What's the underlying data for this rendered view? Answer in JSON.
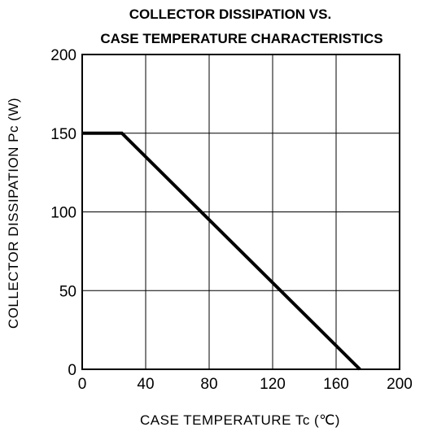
{
  "chart_data": {
    "type": "line",
    "title_lines": [
      "COLLECTOR DISSIPATION VS.",
      "CASE TEMPERATURE CHARACTERISTICS"
    ],
    "xlabel": "CASE TEMPERATURE Tc (℃)",
    "ylabel": "COLLECTOR DISSIPATION Pc (W)",
    "xlim": [
      0,
      200
    ],
    "ylim": [
      0,
      200
    ],
    "xticks": [
      0,
      40,
      80,
      120,
      160,
      200
    ],
    "yticks": [
      0,
      50,
      100,
      150,
      200
    ],
    "grid": true,
    "series": [
      {
        "x": [
          0,
          25,
          175
        ],
        "y": [
          150,
          150,
          0
        ]
      }
    ],
    "line_color": "#000000"
  }
}
